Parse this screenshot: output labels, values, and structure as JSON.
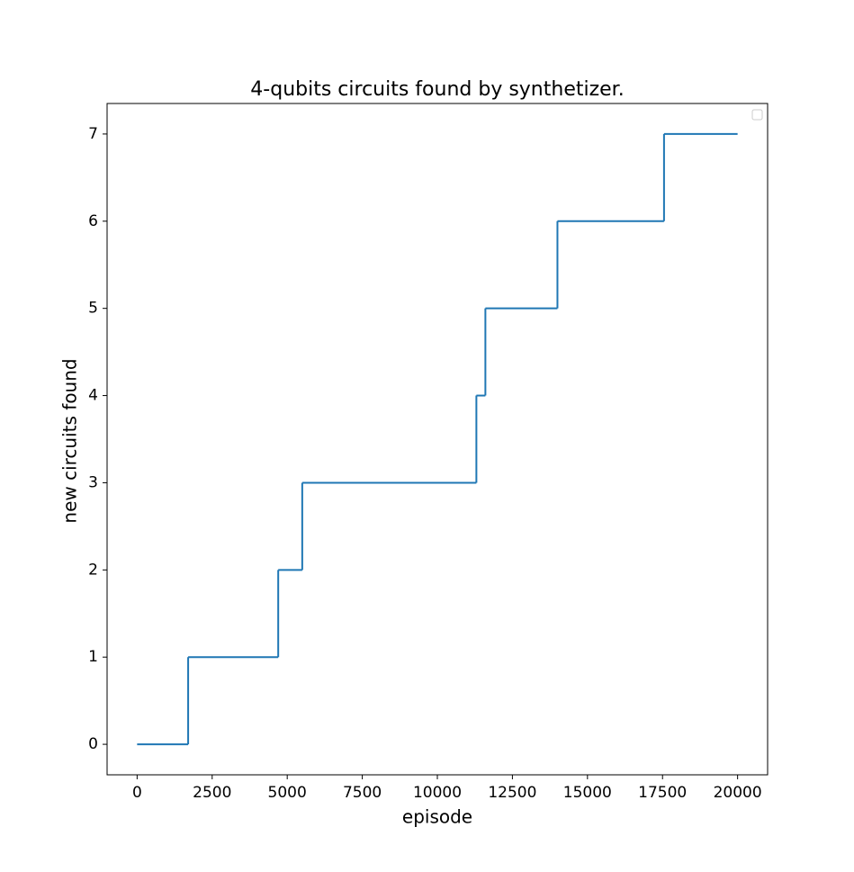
{
  "chart_data": {
    "type": "line",
    "drawstyle": "steps-post",
    "title": "4-qubits circuits found by synthetizer.",
    "xlabel": "episode",
    "ylabel": "new circuits found",
    "x": [
      0,
      1700,
      4700,
      5500,
      11300,
      11600,
      14000,
      17550,
      20000
    ],
    "series": [
      {
        "color": "#1f77b4",
        "values": [
          0,
          1,
          2,
          3,
          4,
          5,
          6,
          7,
          7
        ]
      }
    ],
    "xlim": [
      -1000,
      21000
    ],
    "xticks": [
      0,
      2500,
      5000,
      7500,
      10000,
      12500,
      15000,
      17500,
      20000
    ],
    "ylim": [
      -0.35,
      7.35
    ],
    "yticks": [
      0,
      1,
      2,
      3,
      4,
      5,
      6,
      7
    ],
    "grid": false,
    "legend": "upper right"
  }
}
